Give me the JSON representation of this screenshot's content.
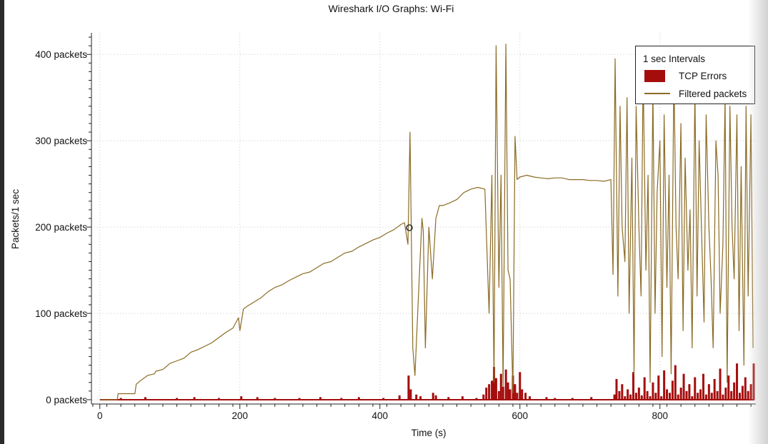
{
  "window_title": "Wireshark I/O Graphs: Wi-Fi",
  "legend": {
    "title": "1 sec Intervals",
    "items": [
      {
        "label": "TCP Errors",
        "color": "#a50d0d",
        "style": "bar"
      },
      {
        "label": "Filtered packets",
        "color": "#8b6b24",
        "style": "line"
      }
    ]
  },
  "chart_data": {
    "type": "line",
    "title": "Wireshark I/O Graphs: Wi-Fi",
    "xlabel": "Time (s)",
    "ylabel": "Packets/1 sec",
    "xlim": [
      -12,
      937
    ],
    "ylim": [
      -5,
      425
    ],
    "x_ticks": [
      0,
      200,
      400,
      600,
      800
    ],
    "x_tick_labels": [
      "0",
      "200",
      "400",
      "600",
      "800"
    ],
    "y_ticks": [
      0,
      100,
      200,
      300,
      400
    ],
    "y_tick_labels": [
      "0 packets",
      "100 packets",
      "200 packets",
      "300 packets",
      "400 packets"
    ],
    "grid": true,
    "legend_position": "top-right",
    "series": [
      {
        "name": "Filtered packets",
        "color": "#8b6b24",
        "x": [
          0,
          25,
          26,
          50,
          52,
          58,
          68,
          78,
          80,
          90,
          100,
          110,
          120,
          130,
          140,
          150,
          160,
          170,
          180,
          190,
          198,
          200,
          205,
          210,
          220,
          230,
          240,
          250,
          260,
          270,
          280,
          290,
          300,
          310,
          320,
          330,
          340,
          350,
          360,
          370,
          380,
          390,
          400,
          410,
          420,
          430,
          435,
          440,
          443,
          447,
          450,
          455,
          460,
          462,
          465,
          470,
          475,
          480,
          485,
          490,
          500,
          510,
          520,
          530,
          540,
          550,
          556,
          560,
          563,
          566,
          570,
          573,
          576,
          580,
          583,
          586,
          590,
          593,
          596,
          600,
          610,
          620,
          630,
          640,
          650,
          660,
          670,
          680,
          690,
          700,
          710,
          720,
          730,
          733,
          736,
          740,
          743,
          746,
          750,
          753,
          756,
          760,
          763,
          766,
          770,
          773,
          776,
          780,
          783,
          786,
          790,
          793,
          796,
          800,
          803,
          806,
          810,
          813,
          816,
          820,
          823,
          826,
          830,
          833,
          836,
          840,
          843,
          846,
          850,
          853,
          856,
          860,
          863,
          866,
          870,
          873,
          876,
          880,
          883,
          886,
          890,
          893,
          896,
          900,
          903,
          906,
          910,
          913,
          916,
          920,
          923,
          926,
          930,
          933
        ],
        "y": [
          0,
          0,
          7,
          7,
          18,
          22,
          28,
          30,
          33,
          35,
          42,
          45,
          48,
          55,
          58,
          62,
          66,
          72,
          78,
          83,
          95,
          80,
          105,
          108,
          113,
          118,
          125,
          130,
          133,
          138,
          142,
          146,
          148,
          153,
          158,
          160,
          165,
          170,
          172,
          177,
          181,
          185,
          188,
          193,
          197,
          203,
          205,
          180,
          310,
          60,
          28,
          120,
          210,
          195,
          60,
          200,
          140,
          210,
          225,
          225,
          228,
          232,
          240,
          244,
          246,
          244,
          100,
          260,
          20,
          410,
          130,
          260,
          15,
          412,
          150,
          140,
          8,
          305,
          255,
          258,
          260,
          258,
          257,
          256,
          257,
          257,
          255,
          255,
          255,
          254,
          254,
          253,
          255,
          145,
          395,
          120,
          340,
          200,
          160,
          350,
          100,
          280,
          30,
          340,
          200,
          120,
          380,
          150,
          260,
          20,
          360,
          100,
          240,
          300,
          50,
          330,
          130,
          260,
          30,
          380,
          200,
          140,
          320,
          80,
          280,
          150,
          220,
          60,
          360,
          120,
          300,
          180,
          90,
          330,
          200,
          140,
          60,
          300,
          260,
          100,
          180,
          350,
          20,
          340,
          200,
          140,
          330,
          80,
          270,
          40,
          340,
          120,
          330,
          60
        ]
      },
      {
        "name": "TCP Errors",
        "color": "#a50d0d",
        "x": [
          30,
          65,
          110,
          135,
          170,
          202,
          225,
          250,
          285,
          315,
          345,
          370,
          405,
          428,
          441,
          444,
          452,
          458,
          476,
          480,
          498,
          518,
          538,
          548,
          552,
          556,
          560,
          563,
          566,
          570,
          573,
          576,
          580,
          583,
          586,
          590,
          593,
          596,
          600,
          603,
          608,
          614,
          638,
          650,
          675,
          702,
          735,
          738,
          742,
          746,
          750,
          754,
          758,
          762,
          766,
          770,
          774,
          778,
          782,
          786,
          790,
          794,
          798,
          802,
          806,
          810,
          814,
          818,
          822,
          826,
          830,
          834,
          838,
          842,
          846,
          850,
          854,
          858,
          862,
          866,
          870,
          874,
          878,
          882,
          886,
          890,
          894,
          898,
          902,
          906,
          910,
          914,
          918,
          922,
          926,
          930,
          934
        ],
        "y": [
          2,
          3,
          2,
          3,
          2,
          4,
          3,
          2,
          2,
          3,
          2,
          3,
          2,
          5,
          28,
          12,
          6,
          4,
          8,
          5,
          3,
          4,
          2,
          6,
          14,
          18,
          22,
          38,
          25,
          10,
          30,
          15,
          35,
          20,
          12,
          28,
          18,
          8,
          32,
          12,
          8,
          4,
          3,
          2,
          2,
          3,
          6,
          24,
          10,
          18,
          4,
          12,
          6,
          32,
          8,
          14,
          5,
          26,
          10,
          4,
          20,
          8,
          28,
          4,
          34,
          12,
          8,
          22,
          40,
          6,
          14,
          30,
          10,
          18,
          4,
          26,
          8,
          12,
          30,
          6,
          18,
          8,
          24,
          10,
          36,
          6,
          14,
          28,
          10,
          20,
          42,
          8,
          16,
          26,
          10,
          18,
          42
        ]
      }
    ]
  }
}
